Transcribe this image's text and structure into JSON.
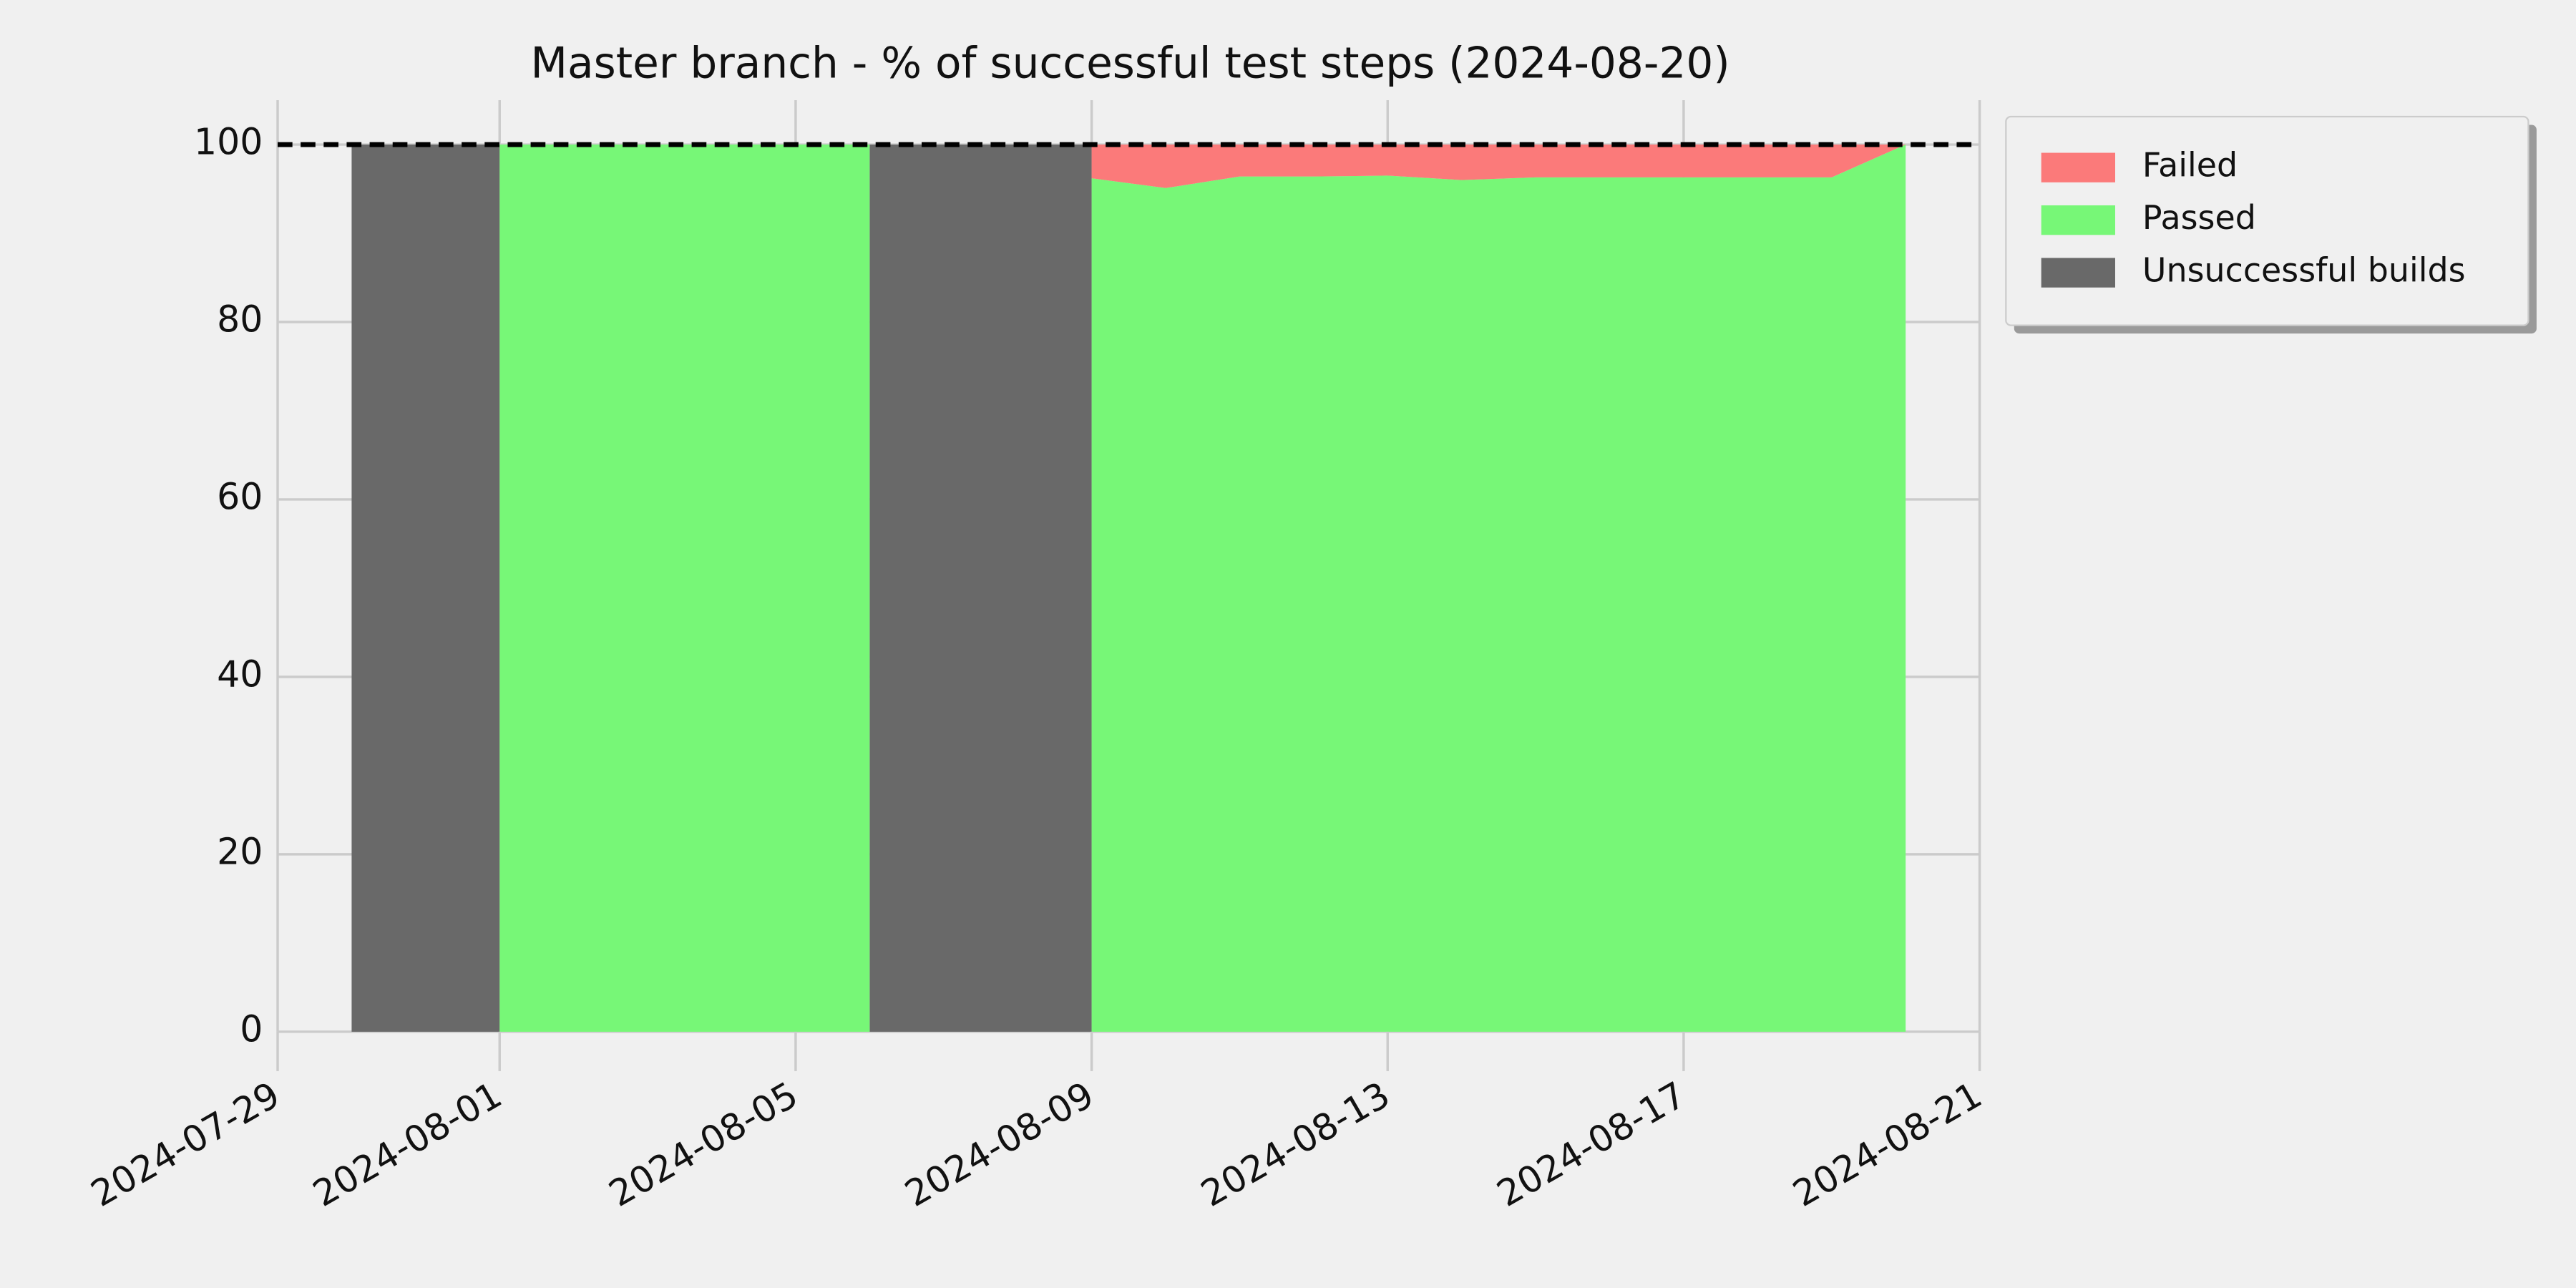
{
  "chart_data": {
    "type": "stacked_area",
    "title": "Master branch - % of successful test steps (2024-08-20)",
    "x": [
      "2024-07-30",
      "2024-08-01",
      "2024-08-01",
      "2024-08-06",
      "2024-08-06",
      "2024-08-09",
      "2024-08-09",
      "2024-08-10",
      "2024-08-11",
      "2024-08-12",
      "2024-08-13",
      "2024-08-14",
      "2024-08-15",
      "2024-08-16",
      "2024-08-17",
      "2024-08-18",
      "2024-08-19",
      "2024-08-20"
    ],
    "series": [
      {
        "name": "Failed",
        "color": "#fb7a7a",
        "values": [
          0,
          0,
          0,
          0,
          0,
          0,
          3.8,
          4.9,
          3.6,
          3.6,
          3.5,
          4,
          3.7,
          3.7,
          3.7,
          3.7,
          3.7,
          0
        ]
      },
      {
        "name": "Passed",
        "color": "#77f777",
        "values": [
          0,
          0,
          100,
          100,
          0,
          0,
          96.2,
          95.1,
          96.4,
          96.4,
          96.5,
          96,
          96.3,
          96.3,
          96.3,
          96.3,
          96.3,
          100
        ]
      },
      {
        "name": "Unsuccessful builds",
        "color": "#696969",
        "values": [
          100,
          100,
          0,
          0,
          100,
          100,
          0,
          0,
          0,
          0,
          0,
          0,
          0,
          0,
          0,
          0,
          0,
          0
        ]
      }
    ],
    "xlim": [
      "2024-07-29",
      "2024-08-21"
    ],
    "xticks": [
      "2024-07-29",
      "2024-08-01",
      "2024-08-05",
      "2024-08-09",
      "2024-08-13",
      "2024-08-17",
      "2024-08-21"
    ],
    "ylim": [
      0,
      105
    ],
    "yticks": [
      0,
      20,
      40,
      60,
      80,
      100
    ],
    "reference_line": 100,
    "grid": true,
    "legend": "upper right outside"
  }
}
